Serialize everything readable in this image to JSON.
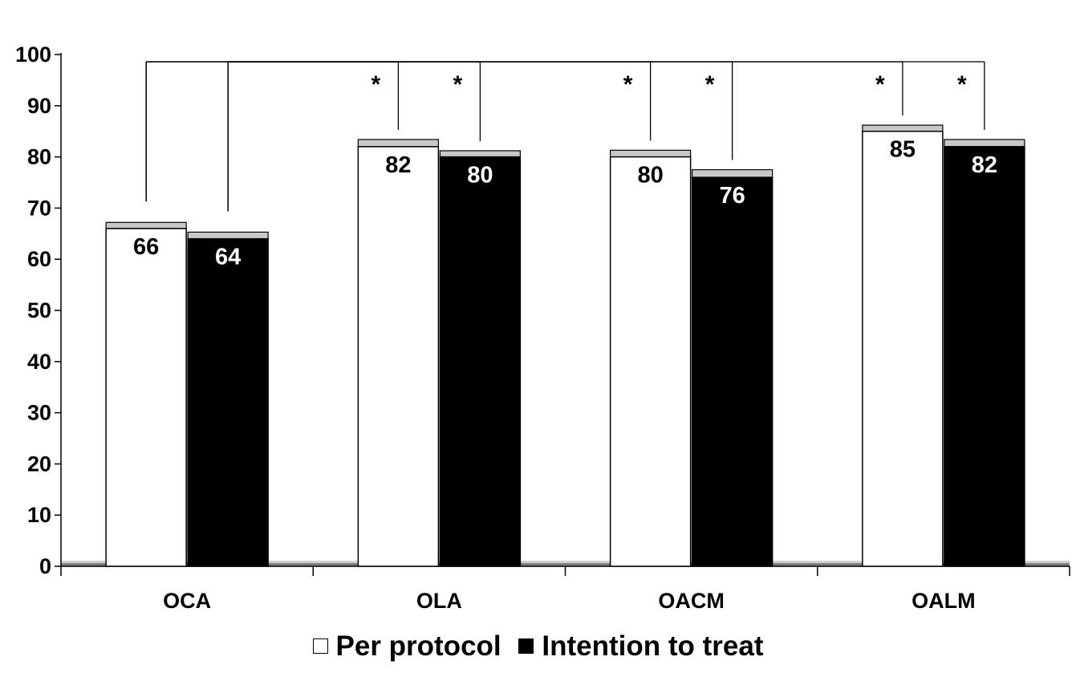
{
  "chart_data": {
    "type": "bar",
    "categories": [
      "OCA",
      "OLA",
      "OACM",
      "OALM"
    ],
    "series": [
      {
        "name": "Per protocol",
        "values": [
          66,
          82,
          80,
          85
        ],
        "error_upper": [
          67.2,
          83.4,
          81.3,
          86.2
        ],
        "color": "#ffffff"
      },
      {
        "name": "Intention to treat",
        "values": [
          64,
          80,
          76,
          82
        ],
        "error_upper": [
          65.3,
          81.2,
          77.5,
          83.4
        ],
        "color": "#000000"
      }
    ],
    "data_labels": [
      [
        "66",
        "82",
        "80",
        "85"
      ],
      [
        "64",
        "80",
        "76",
        "82"
      ]
    ],
    "ylim": [
      0,
      100
    ],
    "yticks": [
      0,
      10,
      20,
      30,
      40,
      50,
      60,
      70,
      80,
      90,
      100
    ],
    "error_bar_color": "#c8c8c8",
    "significance": [
      {
        "from": "OCA|Per protocol",
        "to": "OLA|Per protocol",
        "label": "*"
      },
      {
        "from": "OCA|Per protocol",
        "to": "OACM|Per protocol",
        "label": "*"
      },
      {
        "from": "OCA|Per protocol",
        "to": "OALM|Per protocol",
        "label": "*"
      },
      {
        "from": "OCA|Intention to treat",
        "to": "OLA|Intention to treat",
        "label": "*"
      },
      {
        "from": "OCA|Intention to treat",
        "to": "OACM|Intention to treat",
        "label": "*"
      },
      {
        "from": "OCA|Intention to treat",
        "to": "OALM|Intention to treat",
        "label": "*"
      }
    ],
    "legend_position": "bottom-center",
    "grid": false
  },
  "legend": {
    "items": [
      {
        "label": "Per protocol",
        "icon": "open-square-icon"
      },
      {
        "label": "Intention to treat",
        "icon": "filled-square-icon"
      }
    ]
  }
}
